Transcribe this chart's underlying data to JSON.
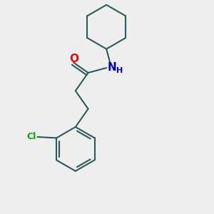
{
  "background_color": "#eeeeee",
  "bond_color": "#2d5a5a",
  "O_color": "#ff0000",
  "N_color": "#0000bb",
  "Cl_color": "#00aa00",
  "line_width": 1.5,
  "fig_size": [
    3.0,
    3.0
  ],
  "dpi": 100,
  "xlim": [
    0,
    10
  ],
  "ylim": [
    0,
    10
  ]
}
